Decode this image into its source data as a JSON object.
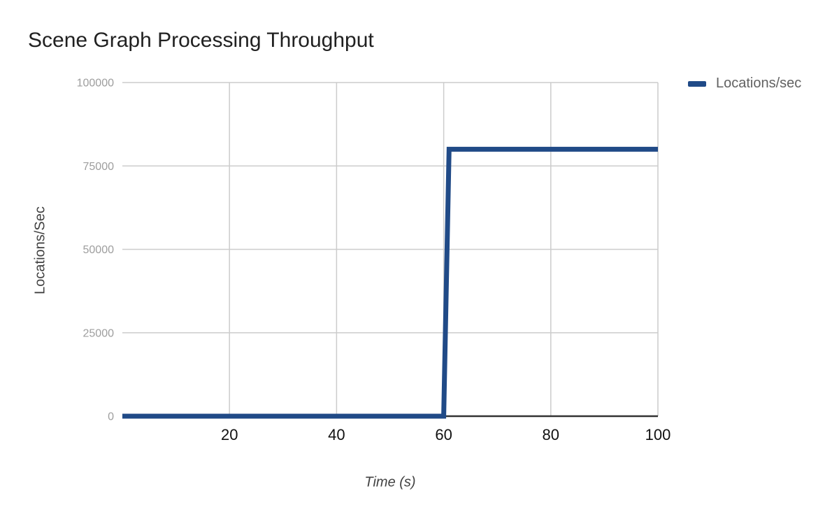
{
  "chart": {
    "background_color": "#ffffff",
    "title_color": "#212121",
    "gridline_color": "#cccccc",
    "axis_line_color": "#333333",
    "x_tick_label_color": "#111111",
    "y_tick_label_color": "#9e9e9e",
    "axis_title_color": "#424242",
    "legend_text_color": "#616161"
  },
  "chart_data": {
    "type": "line",
    "title": "Scene Graph Processing Throughput",
    "xlabel": "Time (s)",
    "ylabel": "Locations/Sec",
    "xlim": [
      0,
      100
    ],
    "ylim": [
      0,
      100000
    ],
    "x_ticks": [
      20,
      40,
      60,
      80,
      100
    ],
    "x_tick_labels": [
      "20",
      "40",
      "60",
      "80",
      "100"
    ],
    "y_ticks": [
      0,
      25000,
      50000,
      75000,
      100000
    ],
    "y_tick_labels": [
      "0",
      "25000",
      "50000",
      "75000",
      "100000"
    ],
    "grid": true,
    "legend_position": "top-right",
    "series": [
      {
        "name": "Locations/sec",
        "color": "#204a87",
        "line_width": 7,
        "points": [
          [
            0,
            0
          ],
          [
            60,
            0
          ],
          [
            61,
            80000
          ],
          [
            100,
            80000
          ]
        ]
      }
    ]
  }
}
